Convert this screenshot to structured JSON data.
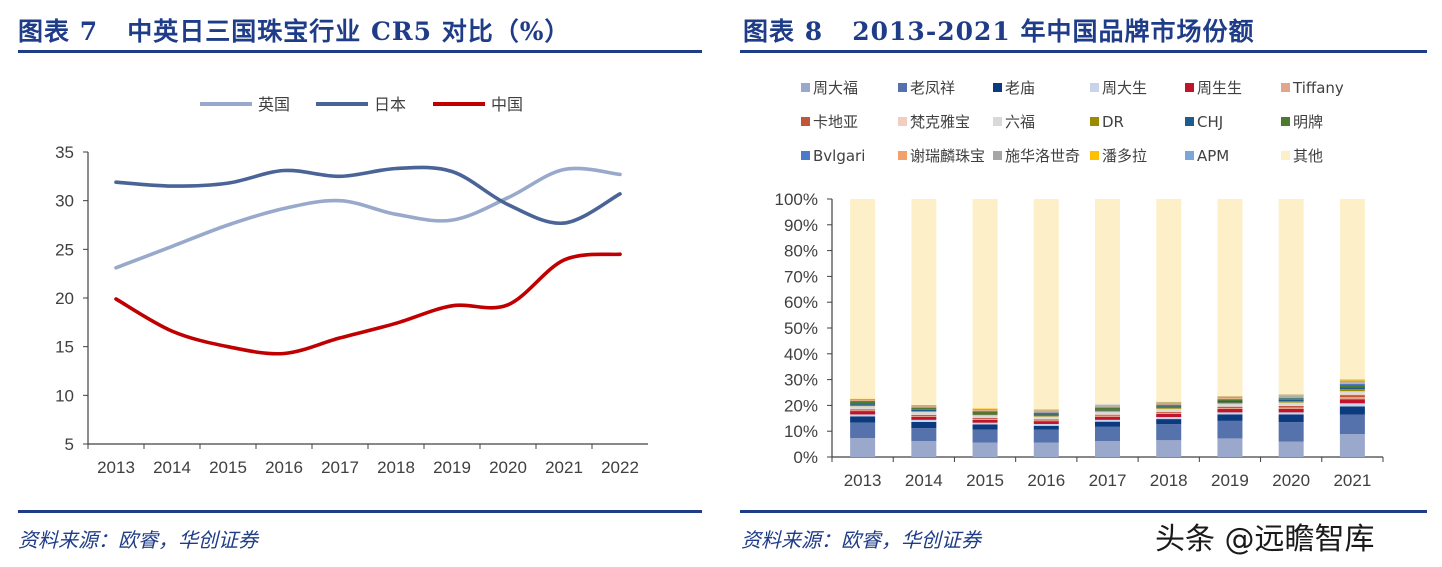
{
  "left": {
    "figure_label": "图表 7",
    "figure_title": "中英日三国珠宝行业 CR5 对比（%）",
    "source": "资料来源：欧睿，华创证券"
  },
  "right": {
    "figure_label": "图表 8",
    "figure_title": "2013-2021 年中国品牌市场份额",
    "source": "资料来源：欧睿，华创证券"
  },
  "watermark": "头条 @远瞻智库",
  "chart_data": [
    {
      "type": "line",
      "title": "中英日三国珠宝行业 CR5 对比（%）",
      "x": [
        "2013",
        "2014",
        "2015",
        "2016",
        "2017",
        "2018",
        "2019",
        "2020",
        "2021",
        "2022"
      ],
      "ylim": [
        5,
        35
      ],
      "yticks": [
        5,
        10,
        15,
        20,
        25,
        30,
        35
      ],
      "legend_position": "top-center",
      "series": [
        {
          "name": "英国",
          "color": "#98a9cb",
          "values": [
            23.1,
            25.3,
            27.5,
            29.2,
            30.0,
            28.6,
            28.0,
            30.3,
            33.2,
            32.7
          ]
        },
        {
          "name": "日本",
          "color": "#4a6498",
          "values": [
            31.9,
            31.5,
            31.8,
            33.1,
            32.5,
            33.3,
            33.0,
            29.6,
            27.7,
            30.7
          ]
        },
        {
          "name": "中国",
          "color": "#c00000",
          "values": [
            19.9,
            16.6,
            15.0,
            14.3,
            15.9,
            17.4,
            19.2,
            19.3,
            23.9,
            24.5
          ]
        }
      ]
    },
    {
      "type": "bar",
      "stacked": true,
      "title": "2013-2021 年中国品牌市场份额",
      "categories": [
        "2013",
        "2014",
        "2015",
        "2016",
        "2017",
        "2018",
        "2019",
        "2020",
        "2021"
      ],
      "ylim": [
        0,
        100
      ],
      "yticks": [
        "0%",
        "10%",
        "20%",
        "30%",
        "40%",
        "50%",
        "60%",
        "70%",
        "80%",
        "90%",
        "100%"
      ],
      "legend_position": "top",
      "series": [
        {
          "name": "周大福",
          "color": "#9aa8cc",
          "values": [
            7.3,
            6.2,
            5.6,
            5.6,
            6.2,
            6.5,
            7.2,
            6.0,
            8.9
          ]
        },
        {
          "name": "老凤祥",
          "color": "#5572ad",
          "values": [
            6.0,
            5.0,
            5.0,
            5.0,
            5.5,
            6.2,
            6.8,
            7.5,
            7.5
          ]
        },
        {
          "name": "老庙",
          "color": "#0b3a7e",
          "values": [
            2.4,
            2.4,
            2.0,
            1.5,
            2.0,
            2.0,
            2.5,
            3.0,
            3.2
          ]
        },
        {
          "name": "周大生",
          "color": "#c9d3ea",
          "values": [
            0.8,
            0.8,
            0.7,
            0.7,
            0.7,
            0.8,
            0.8,
            0.8,
            1.2
          ]
        },
        {
          "name": "周生生",
          "color": "#c0142c",
          "values": [
            1.3,
            1.2,
            1.1,
            1.1,
            1.2,
            1.2,
            1.3,
            1.4,
            1.6
          ]
        },
        {
          "name": "Tiffany",
          "color": "#e0a58a",
          "values": [
            0.3,
            0.3,
            0.3,
            0.3,
            0.4,
            0.4,
            0.4,
            0.5,
            0.8
          ]
        },
        {
          "name": "卡地亚",
          "color": "#c0573a",
          "values": [
            0.4,
            0.4,
            0.4,
            0.4,
            0.4,
            0.4,
            0.5,
            0.6,
            0.8
          ]
        },
        {
          "name": "梵克雅宝",
          "color": "#f0cfc0",
          "values": [
            0.2,
            0.2,
            0.2,
            0.2,
            0.2,
            0.2,
            0.2,
            0.3,
            0.5
          ]
        },
        {
          "name": "六福",
          "color": "#d9d9d9",
          "values": [
            1.0,
            1.0,
            0.9,
            0.9,
            1.0,
            1.0,
            1.0,
            1.0,
            1.0
          ]
        },
        {
          "name": "DR",
          "color": "#9c8a00",
          "values": [
            0.3,
            0.3,
            0.3,
            0.3,
            0.4,
            0.4,
            0.4,
            0.5,
            0.8
          ]
        },
        {
          "name": "CHJ",
          "color": "#1f5c8c",
          "values": [
            0.5,
            0.5,
            0.5,
            0.5,
            0.5,
            0.5,
            0.6,
            0.6,
            0.8
          ]
        },
        {
          "name": "明牌",
          "color": "#4d7a2e",
          "values": [
            1.0,
            0.8,
            0.6,
            0.6,
            0.5,
            0.5,
            0.5,
            0.5,
            0.8
          ]
        },
        {
          "name": "Bvlgari",
          "color": "#4a7ac8",
          "values": [
            0.2,
            0.2,
            0.2,
            0.2,
            0.2,
            0.2,
            0.3,
            0.3,
            0.5
          ]
        },
        {
          "name": "谢瑞麟珠宝",
          "color": "#f4a06a",
          "values": [
            0.3,
            0.3,
            0.3,
            0.3,
            0.3,
            0.3,
            0.3,
            0.3,
            0.4
          ]
        },
        {
          "name": "施华洛世奇",
          "color": "#a6a6a6",
          "values": [
            0.5,
            0.5,
            0.5,
            0.5,
            0.5,
            0.5,
            0.5,
            0.6,
            0.8
          ]
        },
        {
          "name": "潘多拉",
          "color": "#ffc000",
          "values": [
            0.1,
            0.1,
            0.2,
            0.2,
            0.2,
            0.2,
            0.2,
            0.3,
            0.3
          ]
        },
        {
          "name": "APM",
          "color": "#7aa6d8",
          "values": [
            0.0,
            0.0,
            0.0,
            0.1,
            0.1,
            0.1,
            0.1,
            0.1,
            0.2
          ]
        },
        {
          "name": "其他",
          "color": "#fdf0c8",
          "values": [
            77.4,
            79.8,
            81.2,
            81.6,
            79.7,
            78.6,
            76.4,
            75.7,
            69.9
          ]
        }
      ]
    }
  ]
}
